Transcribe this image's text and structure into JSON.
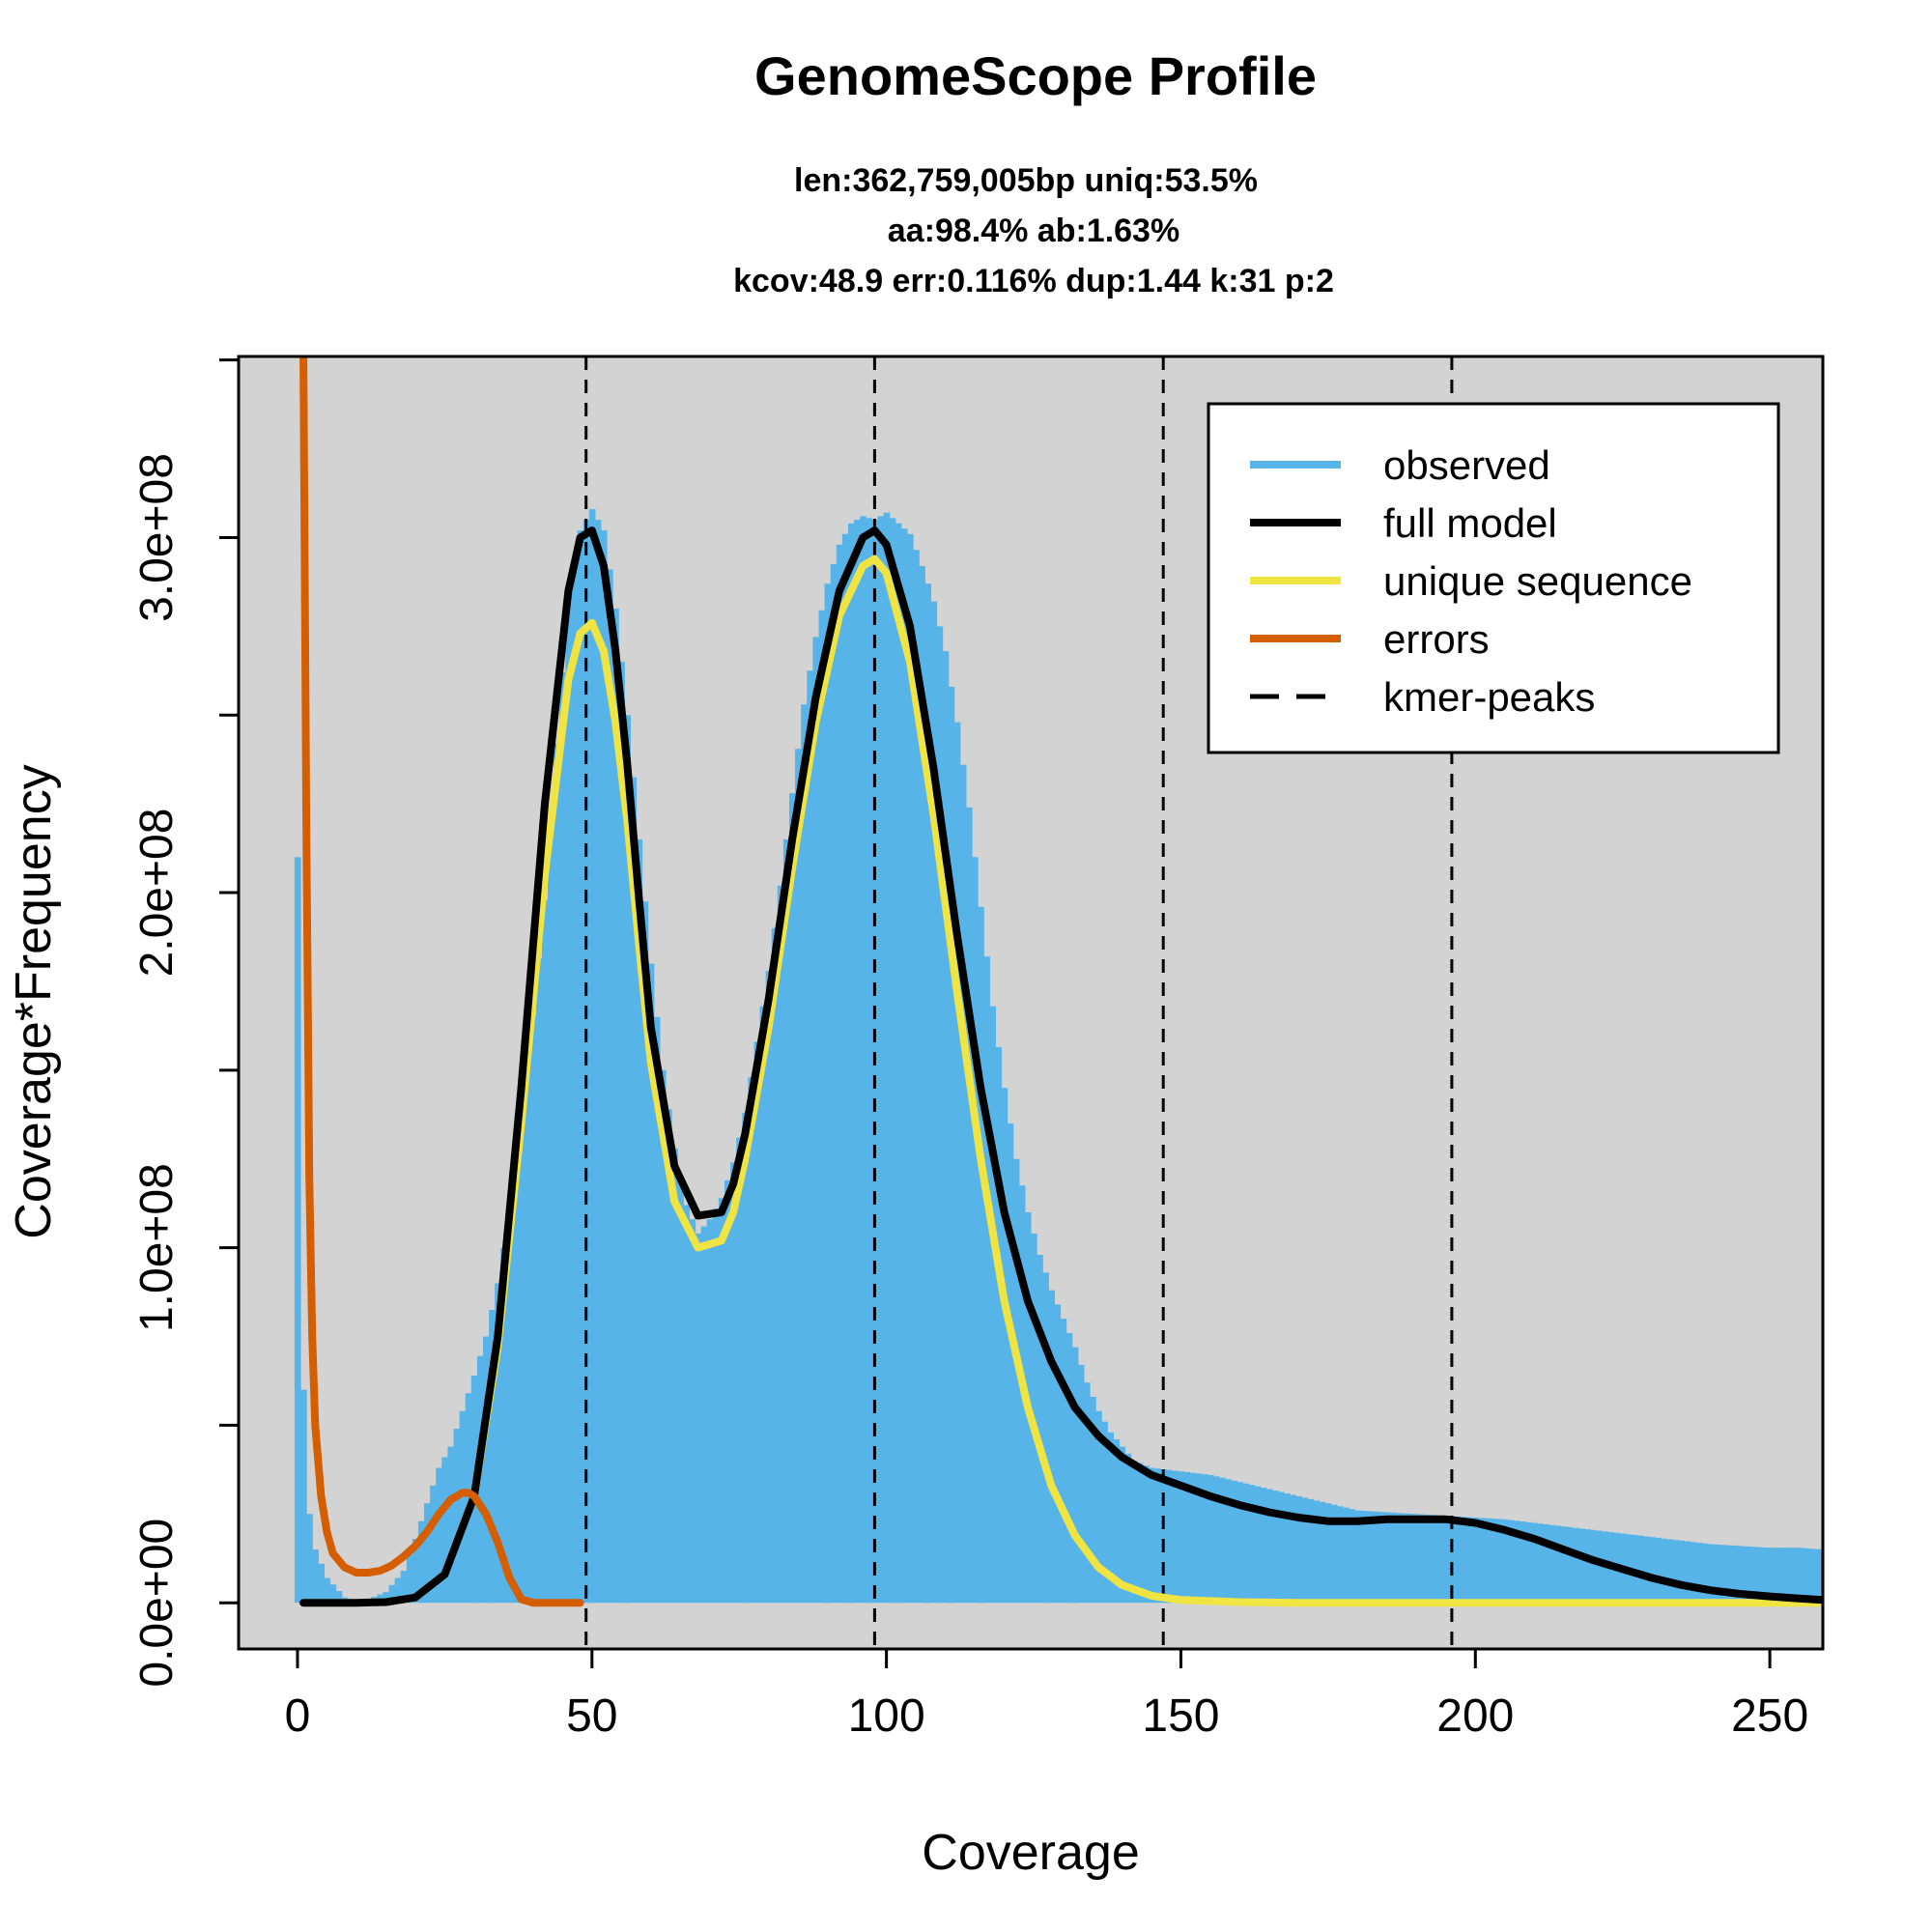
{
  "chart_data": {
    "type": "area",
    "title": "GenomeScope Profile",
    "subtitle_lines": [
      "len:362,759,005bp uniq:53.5%",
      "aa:98.4% ab:1.63%",
      "kcov:48.9 err:0.116%  dup:1.44  k:31 p:2"
    ],
    "xlabel": "Coverage",
    "ylabel": "Coverage*Frequency",
    "xlim": [
      -10,
      259
    ],
    "ylim": [
      -13000000,
      351000000
    ],
    "x_ticks": [
      0,
      50,
      100,
      150,
      200,
      250
    ],
    "x_tick_labels": [
      "0",
      "50",
      "100",
      "150",
      "200",
      "250"
    ],
    "y_ticks": [
      0,
      50000000,
      100000000,
      150000000,
      200000000,
      250000000,
      300000000,
      350000000
    ],
    "y_tick_labels": [
      "0.0e+00",
      "",
      "1.0e+08",
      "",
      "2.0e+08",
      "",
      "3.0e+08",
      ""
    ],
    "background_color": "#d3d3d3",
    "legend": {
      "position": "top-right",
      "entries": [
        {
          "label": "observed",
          "color": "#56b4e9",
          "style": "solid"
        },
        {
          "label": "full model",
          "color": "#000000",
          "style": "solid"
        },
        {
          "label": "unique sequence",
          "color": "#f0e442",
          "style": "solid"
        },
        {
          "label": "errors",
          "color": "#d55e00",
          "style": "solid"
        },
        {
          "label": "kmer-peaks",
          "color": "#000000",
          "style": "dashed"
        }
      ]
    },
    "kmer_peaks": [
      49,
      98,
      147,
      196
    ],
    "series": [
      {
        "name": "observed",
        "color": "#56b4e9",
        "x": [
          0,
          1,
          2,
          3,
          5,
          8,
          10,
          12,
          15,
          18,
          20,
          22,
          24,
          26,
          28,
          30,
          32,
          34,
          36,
          38,
          40,
          42,
          44,
          46,
          48,
          50,
          52,
          54,
          56,
          58,
          60,
          62,
          64,
          66,
          68,
          70,
          72,
          74,
          76,
          78,
          80,
          82,
          84,
          86,
          88,
          90,
          92,
          94,
          96,
          98,
          100,
          102,
          104,
          106,
          108,
          110,
          112,
          114,
          116,
          118,
          120,
          122,
          124,
          126,
          128,
          130,
          132,
          134,
          136,
          138,
          140,
          142,
          145,
          150,
          155,
          160,
          165,
          170,
          175,
          180,
          185,
          190,
          195,
          200,
          205,
          210,
          215,
          220,
          225,
          230,
          235,
          240,
          245,
          250,
          255,
          259
        ],
        "y": [
          210000000,
          60000000,
          25000000,
          15000000,
          7000000,
          1500000,
          500000,
          1000000,
          3000000,
          9000000,
          18000000,
          28000000,
          38000000,
          44000000,
          54000000,
          64000000,
          75000000,
          90000000,
          110000000,
          138000000,
          165000000,
          198000000,
          242000000,
          282000000,
          302000000,
          308000000,
          302000000,
          280000000,
          250000000,
          215000000,
          180000000,
          150000000,
          128000000,
          112000000,
          104000000,
          108000000,
          114000000,
          124000000,
          138000000,
          158000000,
          178000000,
          202000000,
          228000000,
          253000000,
          272000000,
          287000000,
          298000000,
          304000000,
          306000000,
          305000000,
          307000000,
          304000000,
          301000000,
          292000000,
          282000000,
          268000000,
          248000000,
          224000000,
          196000000,
          168000000,
          145000000,
          125000000,
          110000000,
          98000000,
          88000000,
          80000000,
          72000000,
          62000000,
          54000000,
          48000000,
          44000000,
          40000000,
          38000000,
          37000000,
          36000000,
          34000000,
          32000000,
          30000000,
          28000000,
          26000000,
          25500000,
          25000000,
          24500000,
          24000000,
          23500000,
          22500000,
          21500000,
          20500000,
          19500000,
          18500000,
          17500000,
          16500000,
          16000000,
          15500000,
          15500000,
          15000000
        ]
      },
      {
        "name": "full model",
        "color": "#000000",
        "x": [
          1,
          10,
          15,
          20,
          25,
          30,
          34,
          38,
          42,
          46,
          48,
          50,
          52,
          54,
          56,
          58,
          60,
          64,
          68,
          72,
          74,
          76,
          80,
          84,
          88,
          92,
          96,
          98,
          100,
          104,
          108,
          112,
          116,
          120,
          124,
          128,
          132,
          136,
          140,
          145,
          150,
          155,
          160,
          165,
          170,
          175,
          180,
          185,
          190,
          195,
          200,
          205,
          210,
          215,
          220,
          225,
          230,
          235,
          240,
          245,
          250,
          255,
          259
        ],
        "y": [
          0,
          0,
          200000,
          1500000,
          8000000,
          30000000,
          75000000,
          145000000,
          225000000,
          285000000,
          300000000,
          302000000,
          292000000,
          268000000,
          236000000,
          198000000,
          162000000,
          123000000,
          109000000,
          110000000,
          118000000,
          132000000,
          170000000,
          215000000,
          255000000,
          285000000,
          300000000,
          302000000,
          298000000,
          275000000,
          235000000,
          188000000,
          145000000,
          110000000,
          85000000,
          68000000,
          55000000,
          47000000,
          41000000,
          36000000,
          33000000,
          30000000,
          27500000,
          25500000,
          24000000,
          23000000,
          23000000,
          23500000,
          23500000,
          23500000,
          22500000,
          20500000,
          18000000,
          15000000,
          12000000,
          9500000,
          7000000,
          5000000,
          3500000,
          2500000,
          1800000,
          1200000,
          800000
        ]
      },
      {
        "name": "unique sequence",
        "color": "#f0e442",
        "x": [
          1,
          10,
          15,
          20,
          25,
          30,
          34,
          38,
          42,
          46,
          48,
          50,
          52,
          54,
          56,
          58,
          60,
          64,
          68,
          72,
          74,
          76,
          80,
          84,
          88,
          92,
          96,
          98,
          100,
          104,
          108,
          112,
          116,
          120,
          124,
          128,
          132,
          136,
          140,
          145,
          150,
          160,
          170,
          180,
          200,
          220,
          240,
          259
        ],
        "y": [
          0,
          0,
          200000,
          1500000,
          8000000,
          30000000,
          72000000,
          135000000,
          205000000,
          260000000,
          273000000,
          276000000,
          268000000,
          248000000,
          220000000,
          185000000,
          152000000,
          113000000,
          100000000,
          102000000,
          110000000,
          125000000,
          162000000,
          207000000,
          248000000,
          278000000,
          292000000,
          294000000,
          290000000,
          265000000,
          222000000,
          172000000,
          125000000,
          85000000,
          55000000,
          33000000,
          19000000,
          10000000,
          5000000,
          2000000,
          800000,
          200000,
          0,
          0,
          0,
          0,
          0,
          0
        ]
      },
      {
        "name": "errors",
        "color": "#d55e00",
        "x": [
          1,
          1.5,
          2,
          2.5,
          3,
          4,
          5,
          6,
          8,
          10,
          12,
          14,
          16,
          18,
          20,
          22,
          24,
          26,
          28,
          29,
          30,
          32,
          34,
          36,
          38,
          40,
          42,
          44,
          46,
          48
        ],
        "y": [
          351000000,
          220000000,
          120000000,
          75000000,
          50000000,
          30000000,
          20000000,
          14000000,
          10000000,
          8500000,
          8500000,
          9000000,
          10500000,
          13000000,
          16000000,
          20000000,
          25000000,
          29000000,
          31000000,
          31000000,
          30000000,
          25000000,
          17000000,
          7000000,
          1000000,
          0,
          0,
          0,
          0,
          0
        ]
      }
    ]
  }
}
